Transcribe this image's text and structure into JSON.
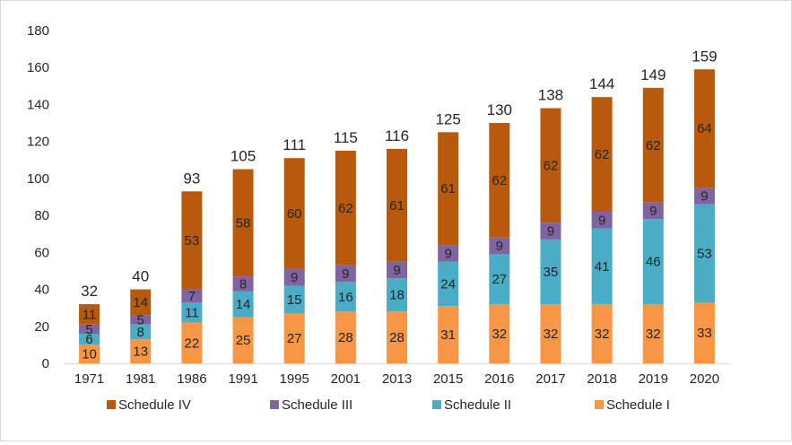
{
  "chart_data": {
    "type": "bar",
    "stacked": true,
    "categories": [
      "1971",
      "1981",
      "1986",
      "1991",
      "1995",
      "2001",
      "2013",
      "2015",
      "2016",
      "2017",
      "2018",
      "2019",
      "2020"
    ],
    "series": [
      {
        "name": "Schedule I",
        "color": "#F79646",
        "values": [
          10,
          13,
          22,
          25,
          27,
          28,
          28,
          31,
          32,
          32,
          32,
          32,
          33
        ]
      },
      {
        "name": "Schedule II",
        "color": "#4BACC6",
        "values": [
          6,
          8,
          11,
          14,
          15,
          16,
          18,
          24,
          27,
          35,
          41,
          46,
          53
        ]
      },
      {
        "name": "Schedule III",
        "color": "#8064A2",
        "values": [
          5,
          5,
          7,
          8,
          9,
          9,
          9,
          9,
          9,
          9,
          9,
          9,
          9
        ]
      },
      {
        "name": "Schedule IV",
        "color": "#B85A0D",
        "values": [
          11,
          14,
          53,
          58,
          60,
          62,
          61,
          61,
          62,
          62,
          62,
          62,
          64
        ]
      }
    ],
    "totals": [
      32,
      40,
      93,
      105,
      111,
      115,
      116,
      125,
      130,
      138,
      144,
      149,
      159
    ],
    "ylim": [
      0,
      180
    ],
    "yticks": [
      0,
      20,
      40,
      60,
      80,
      100,
      120,
      140,
      160,
      180
    ],
    "legend_order": [
      "Schedule IV",
      "Schedule III",
      "Schedule II",
      "Schedule I"
    ],
    "legend_position": "bottom",
    "grid": false,
    "title": "",
    "xlabel": "",
    "ylabel": ""
  }
}
